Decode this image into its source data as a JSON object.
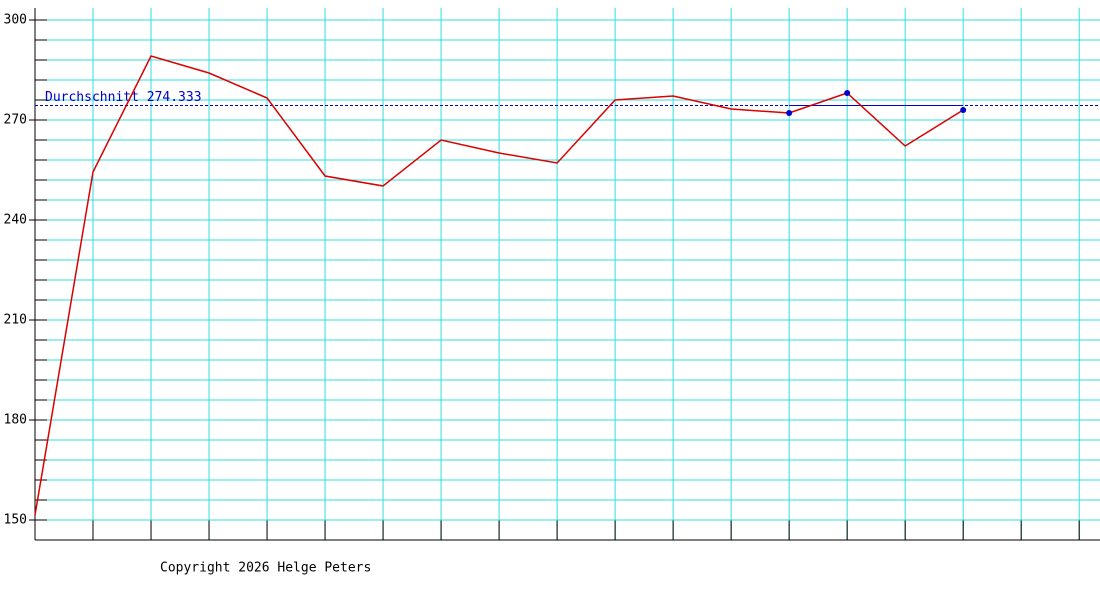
{
  "chart_data": {
    "type": "line",
    "x": [
      0,
      1,
      2,
      3,
      4,
      5,
      6,
      7,
      8,
      9,
      10,
      11,
      12,
      13,
      14,
      15,
      16
    ],
    "series": [
      {
        "color": "#dd0000",
        "values": [
          151.5,
          254.4,
          289.2,
          284.1,
          276.6,
          253.2,
          250.2,
          264,
          260.1,
          257.1,
          276,
          277.2,
          273.3,
          272.1,
          278.1,
          262.2,
          273
        ]
      }
    ],
    "highlight_points": [
      13,
      14,
      16
    ],
    "highlight_color": "#0000cc",
    "average": 274.333,
    "average_label": "Durchschnitt 274.333",
    "average_color": "#0000cc",
    "xlim": [
      0,
      18.1
    ],
    "ylim": [
      144,
      303.6
    ],
    "yticks": [
      150,
      180,
      210,
      240,
      270,
      300
    ],
    "yminorticks": [
      150,
      156,
      162,
      168,
      174,
      180,
      186,
      192,
      198,
      204,
      210,
      216,
      222,
      228,
      234,
      240,
      246,
      252,
      258,
      264,
      270,
      276,
      282,
      288,
      294,
      300
    ],
    "grid_color": "#33dddd",
    "footer": "Copyright 2026 Helge Peters"
  }
}
